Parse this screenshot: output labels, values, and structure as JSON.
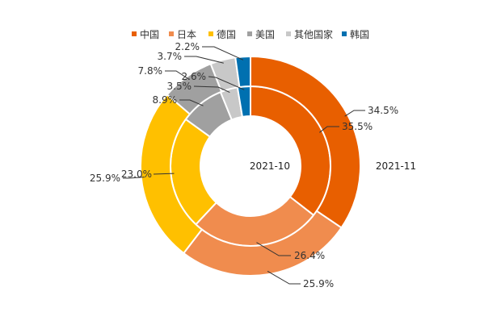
{
  "chart_data": {
    "type": "pie",
    "legend": [
      {
        "name": "中国",
        "color": "#E85F00"
      },
      {
        "name": "日本",
        "color": "#F08C4E"
      },
      {
        "name": "德国",
        "color": "#FFC000"
      },
      {
        "name": "美国",
        "color": "#A0A0A0"
      },
      {
        "name": "其他国家",
        "color": "#C8C8C8"
      },
      {
        "name": "韩国",
        "color": "#0070B0"
      }
    ],
    "series": [
      {
        "name": "2021-10",
        "ring": "inner",
        "values": [
          35.5,
          26.4,
          23.0,
          8.9,
          3.5,
          2.6
        ],
        "labels": [
          "35.5%",
          "26.4%",
          "23.0%",
          "8.9%",
          "3.5%",
          "2.6%"
        ]
      },
      {
        "name": "2021-11",
        "ring": "outer",
        "values": [
          34.5,
          25.9,
          25.9,
          7.8,
          3.7,
          2.2
        ],
        "labels": [
          "34.5%",
          "25.9%",
          "25.9%",
          "7.8%",
          "3.7%",
          "2.2%"
        ]
      }
    ],
    "title": ""
  }
}
